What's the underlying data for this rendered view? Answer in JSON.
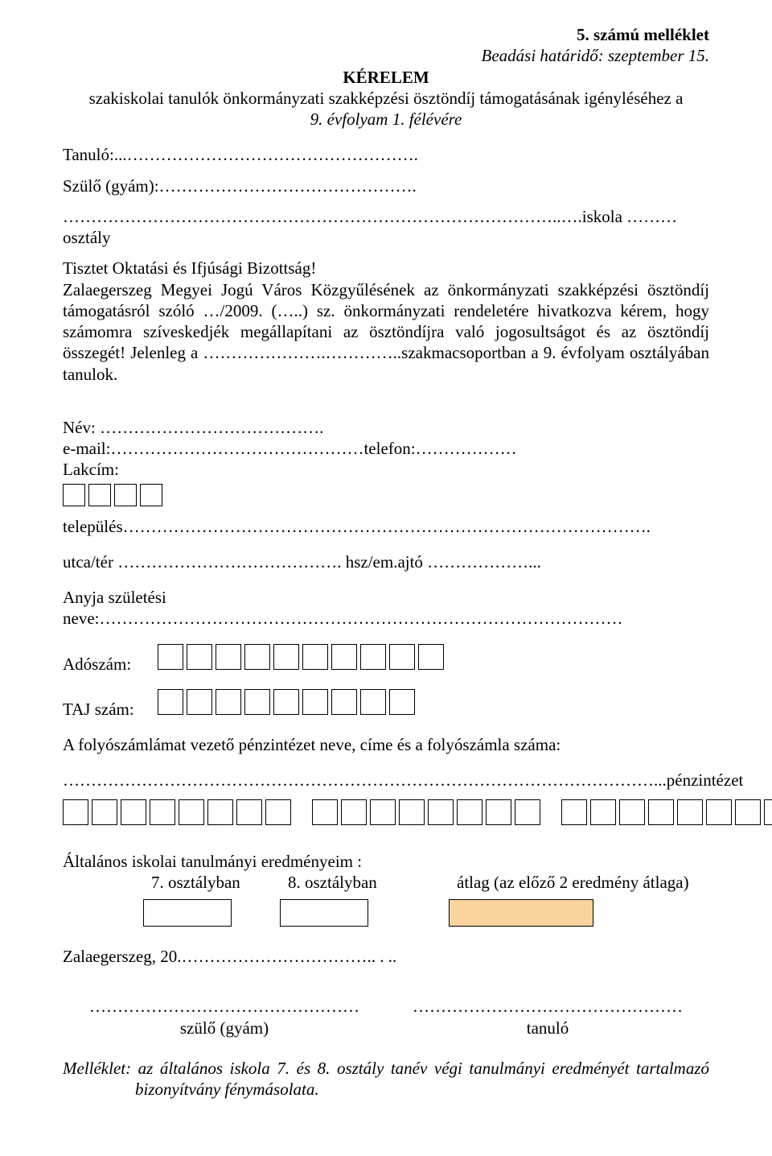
{
  "header": {
    "attachment": "5. számú melléklet",
    "deadline": "Beadási határidő: szeptember 15.",
    "title": "KÉRELEM",
    "subtitle_line1": "szakiskolai tanulók önkormányzati szakképzési ösztöndíj támogatásának igényléséhez a",
    "subtitle_line2": "9. évfolyam 1. félévére"
  },
  "intro": {
    "student_label": "Tanuló:...…………………………………………….",
    "guardian_label": "Szülő (gyám):……………………………………….",
    "dotted_school": "……………………………………………………………………………..….iskola ………osztály",
    "addressee": "Tisztet Oktatási és Ifjúsági Bizottság!",
    "body": "Zalaegerszeg Megyei Jogú Város Közgyűlésének az önkormányzati szakképzési ösztöndíj támogatásról szóló …/2009. (…..) sz. önkormányzati rendeletére hivatkozva kérem, hogy számomra szíveskedjék megállapítani az ösztöndíjra való jogosultságot és az ösztöndíj összegét! Jelenleg a ………………….…………..szakmacsoportban a 9. évfolyam osztályában tanulok."
  },
  "personal": {
    "name": "Név: ………………………………….",
    "email_phone": "e-mail:………………………………………telefon:………………",
    "address_label": "Lakcím:",
    "settlement": "település………………………………………………………………………………….",
    "street": "utca/tér …………………………………. hsz/em.ajtó ………………...",
    "mother": "Anyja születési neve:…………………………………………………………………………………",
    "tax_label": "Adószám:",
    "taj_label": "TAJ szám:",
    "bank_label": "A folyószámlámat vezető pénzintézet neve, címe és a folyószámla száma:",
    "bank_dots": "……………………………………………………………………………………………...pénzintézet"
  },
  "grades": {
    "title": "Általános iskolai tanulmányi eredményeim :",
    "col7": "7. osztályban",
    "col8": "8. osztályban",
    "avg": "átlag (az előző 2 eredmény átlaga)"
  },
  "footer": {
    "place_date": "Zalaegerszeg, 20.……………………………..  .  ..",
    "sig_dots": "…………………………………………",
    "sig_guardian": "szülő (gyám)",
    "sig_student": "tanuló",
    "attachment_note": "Melléklet: az általános iskola 7. és 8. osztály tanév végi tanulmányi eredményét tartalmazó bizonyítvány fénymásolata.",
    "attachment_label": "Melléklet:"
  },
  "boxes": {
    "postal_count": 4,
    "tax_count": 10,
    "taj_count": 9,
    "account_group_count": 8,
    "account_groups": 3
  },
  "colors": {
    "text": "#000000",
    "background": "#ffffff",
    "highlight_box": "#fbd49e",
    "box_border": "#000000"
  }
}
